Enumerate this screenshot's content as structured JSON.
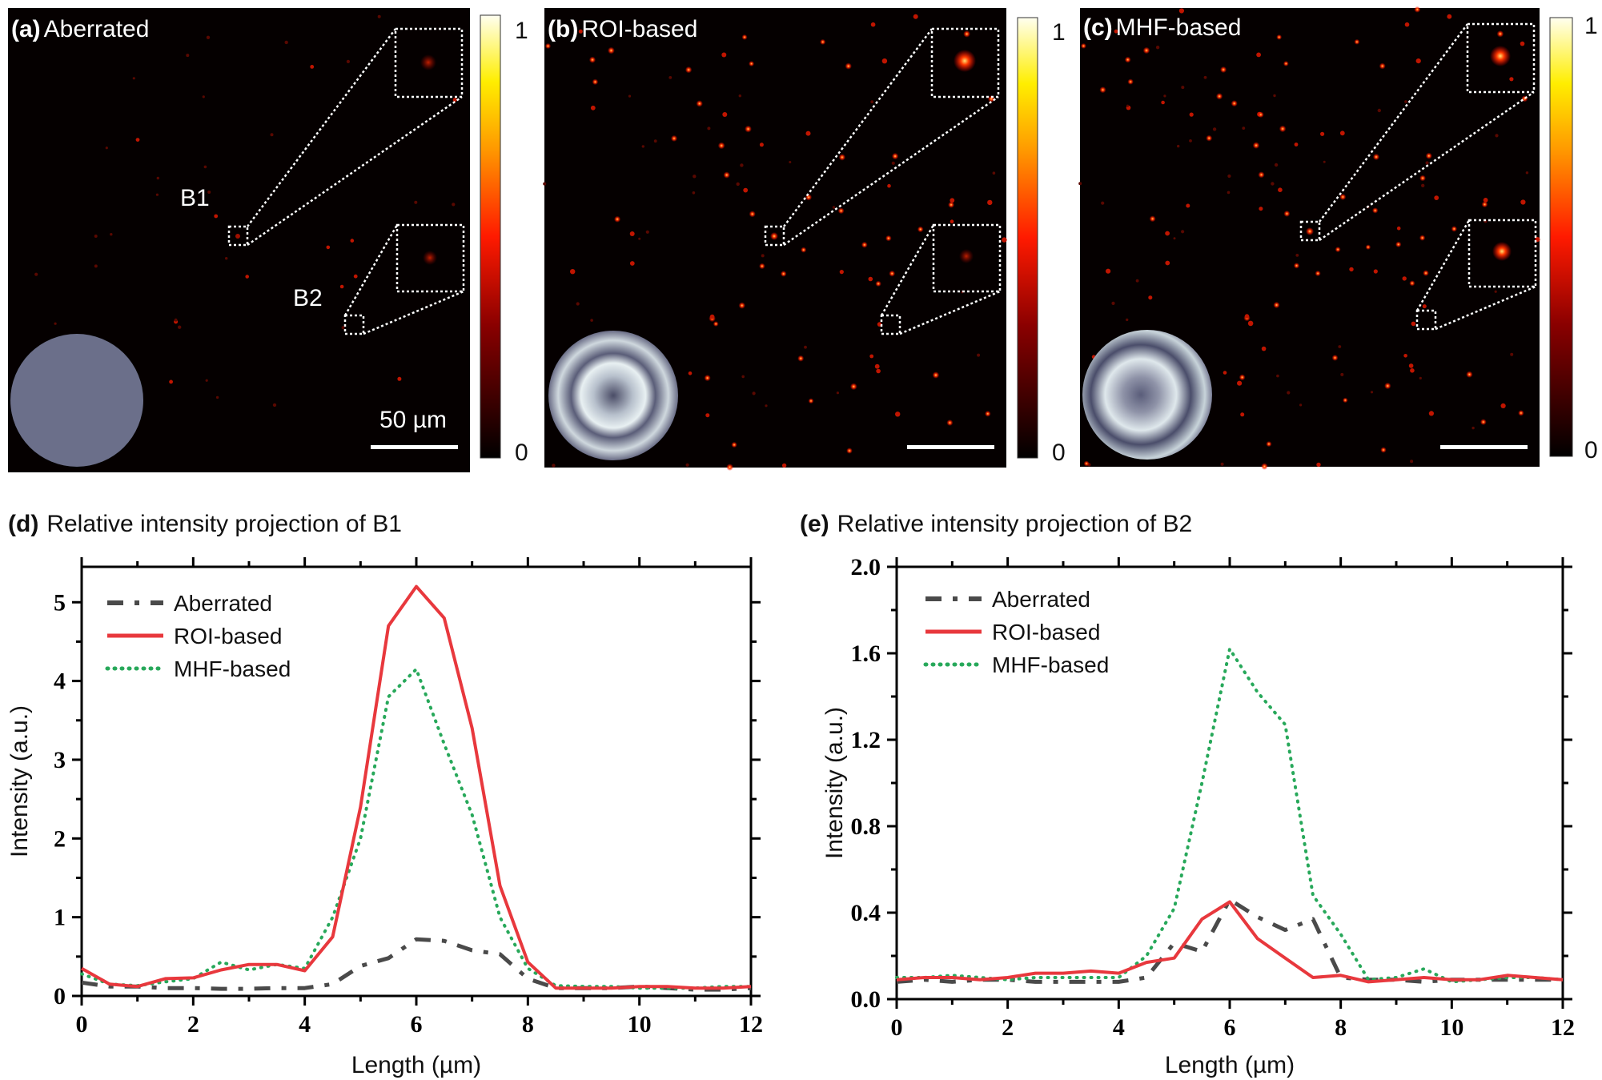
{
  "panels": [
    {
      "letter": "(a)",
      "title": "Aberrated",
      "inset_labels": [
        "B1",
        "B2"
      ],
      "scale_bar_label": "50 µm",
      "colorbar": {
        "max_label": "1",
        "min_label": "0"
      },
      "pupil": "flat",
      "spot_brightness": 0.35,
      "spot_count": 40
    },
    {
      "letter": "(b)",
      "title": "ROI-based",
      "colorbar": {
        "max_label": "1",
        "min_label": "0"
      },
      "pupil": "corrected",
      "spot_brightness": 1.0,
      "spot_count": 110
    },
    {
      "letter": "(c)",
      "title": "MHF-based",
      "colorbar": {
        "max_label": "1",
        "min_label": "0"
      },
      "pupil": "corrected",
      "spot_brightness": 0.95,
      "spot_count": 150
    }
  ],
  "colors": {
    "roi": "#e8383d",
    "mhf": "#27a85a",
    "aberrated": "#4a4a4a"
  },
  "chart_data": [
    {
      "type": "line",
      "letter": "(d)",
      "title": "Relative intensity projection of B1",
      "xlabel": "Length (µm)",
      "ylabel": "Intensity  (a.u.)",
      "xlim": [
        0,
        12
      ],
      "ylim": [
        0,
        5.45
      ],
      "xticks": [
        0,
        2,
        4,
        6,
        8,
        10,
        12
      ],
      "yticks": [
        "0",
        "1",
        "2",
        "3",
        "4",
        "5"
      ],
      "ytick_values": [
        0,
        1,
        2,
        3,
        4,
        5
      ],
      "grid": false,
      "legend_position": "top-left",
      "x": [
        0,
        0.5,
        1,
        1.5,
        2,
        2.5,
        3,
        3.5,
        4,
        4.5,
        5,
        5.5,
        6,
        6.5,
        7,
        7.5,
        8,
        8.5,
        9,
        9.5,
        10,
        10.5,
        11,
        11.5,
        12
      ],
      "series": [
        {
          "name": "Aberrated",
          "key": "aberrated",
          "style": "dashed",
          "values": [
            0.17,
            0.12,
            0.12,
            0.1,
            0.1,
            0.09,
            0.09,
            0.1,
            0.1,
            0.15,
            0.38,
            0.48,
            0.72,
            0.7,
            0.58,
            0.53,
            0.22,
            0.1,
            0.1,
            0.1,
            0.12,
            0.1,
            0.08,
            0.08,
            0.1
          ]
        },
        {
          "name": "ROI-based",
          "key": "roi",
          "style": "solid",
          "values": [
            0.35,
            0.15,
            0.12,
            0.22,
            0.23,
            0.33,
            0.4,
            0.4,
            0.32,
            0.75,
            2.4,
            4.7,
            5.2,
            4.8,
            3.4,
            1.4,
            0.43,
            0.1,
            0.1,
            0.1,
            0.12,
            0.12,
            0.1,
            0.1,
            0.12
          ]
        },
        {
          "name": "MHF-based",
          "key": "mhf",
          "style": "dotted",
          "values": [
            0.28,
            0.15,
            0.13,
            0.18,
            0.22,
            0.43,
            0.33,
            0.4,
            0.35,
            1.0,
            2.0,
            3.8,
            4.15,
            3.2,
            2.3,
            1.0,
            0.35,
            0.13,
            0.12,
            0.12,
            0.1,
            0.1,
            0.1,
            0.12,
            0.12
          ]
        }
      ]
    },
    {
      "type": "line",
      "letter": "(e)",
      "title": "Relative intensity projection of B2",
      "xlabel": "Length (µm)",
      "ylabel": "Intensity  (a.u.)",
      "xlim": [
        0,
        12
      ],
      "ylim": [
        0,
        2.0
      ],
      "xticks": [
        0,
        2,
        4,
        6,
        8,
        10,
        12
      ],
      "yticks": [
        "0.0",
        "0.4",
        "0.8",
        "1.2",
        "1.6",
        "2.0"
      ],
      "ytick_values": [
        0,
        0.4,
        0.8,
        1.2,
        1.6,
        2.0
      ],
      "grid": false,
      "legend_position": "top-left",
      "x": [
        0,
        0.5,
        1,
        1.5,
        2,
        2.5,
        3,
        3.5,
        4,
        4.5,
        5,
        5.5,
        6,
        6.5,
        7,
        7.5,
        8,
        8.5,
        9,
        9.5,
        10,
        10.5,
        11,
        11.5,
        12
      ],
      "series": [
        {
          "name": "Aberrated",
          "key": "aberrated",
          "style": "dashed",
          "values": [
            0.08,
            0.09,
            0.08,
            0.09,
            0.09,
            0.08,
            0.08,
            0.08,
            0.08,
            0.1,
            0.26,
            0.22,
            0.46,
            0.38,
            0.32,
            0.37,
            0.1,
            0.09,
            0.09,
            0.08,
            0.09,
            0.09,
            0.09,
            0.09,
            0.09
          ]
        },
        {
          "name": "ROI-based",
          "key": "roi",
          "style": "solid",
          "values": [
            0.09,
            0.1,
            0.1,
            0.09,
            0.1,
            0.12,
            0.12,
            0.13,
            0.12,
            0.17,
            0.19,
            0.37,
            0.45,
            0.28,
            0.19,
            0.1,
            0.11,
            0.08,
            0.09,
            0.1,
            0.09,
            0.09,
            0.11,
            0.1,
            0.09
          ]
        },
        {
          "name": "MHF-based",
          "key": "mhf",
          "style": "dotted",
          "values": [
            0.1,
            0.1,
            0.11,
            0.1,
            0.09,
            0.1,
            0.1,
            0.1,
            0.1,
            0.2,
            0.42,
            1.0,
            1.62,
            1.42,
            1.27,
            0.48,
            0.3,
            0.09,
            0.1,
            0.14,
            0.08,
            0.09,
            0.1,
            0.1,
            0.09
          ]
        }
      ]
    }
  ]
}
